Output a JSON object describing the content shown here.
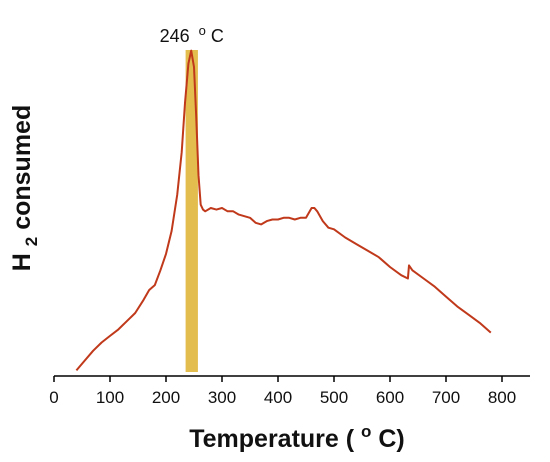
{
  "chart_data": {
    "type": "line",
    "xlabel_text": "Temperature (",
    "xlabel_sup": "o",
    "xlabel_end": "C)",
    "ylabel_main": "H",
    "ylabel_sub": "2",
    "ylabel_end": " consumed",
    "xlim": [
      0,
      850
    ],
    "ylim": [
      0,
      1
    ],
    "y_ticks_shown": false,
    "x_ticks": [
      0,
      100,
      200,
      300,
      400,
      500,
      600,
      700,
      800
    ],
    "x_tick_labels": [
      "0",
      "100",
      "200",
      "300",
      "400",
      "500",
      "600",
      "700",
      "800"
    ],
    "highlight": {
      "x_from": 235,
      "x_to": 257,
      "color": "#E3BD4E"
    },
    "annotation": {
      "value": "246",
      "sup": "o",
      "unit": "C",
      "x": 246
    },
    "series": [
      {
        "color": "#C0391B",
        "x": [
          40,
          55,
          70,
          85,
          100,
          115,
          130,
          145,
          160,
          170,
          180,
          190,
          200,
          210,
          220,
          228,
          234,
          240,
          245,
          250,
          254,
          258,
          262,
          266,
          270,
          280,
          290,
          300,
          310,
          320,
          330,
          340,
          350,
          360,
          370,
          380,
          390,
          400,
          410,
          420,
          430,
          440,
          450,
          460,
          465,
          470,
          480,
          490,
          500,
          520,
          540,
          560,
          580,
          600,
          620,
          632,
          634,
          640,
          660,
          680,
          700,
          720,
          740,
          760,
          780
        ],
        "y": [
          0.005,
          0.035,
          0.065,
          0.09,
          0.11,
          0.13,
          0.155,
          0.18,
          0.22,
          0.25,
          0.265,
          0.31,
          0.36,
          0.43,
          0.54,
          0.67,
          0.82,
          0.94,
          0.98,
          0.93,
          0.78,
          0.6,
          0.51,
          0.495,
          0.49,
          0.5,
          0.495,
          0.5,
          0.49,
          0.49,
          0.48,
          0.475,
          0.47,
          0.455,
          0.45,
          0.46,
          0.465,
          0.465,
          0.47,
          0.47,
          0.465,
          0.47,
          0.47,
          0.5,
          0.5,
          0.49,
          0.46,
          0.44,
          0.435,
          0.41,
          0.39,
          0.37,
          0.35,
          0.32,
          0.295,
          0.285,
          0.325,
          0.31,
          0.285,
          0.26,
          0.23,
          0.2,
          0.175,
          0.15,
          0.12
        ]
      }
    ]
  }
}
